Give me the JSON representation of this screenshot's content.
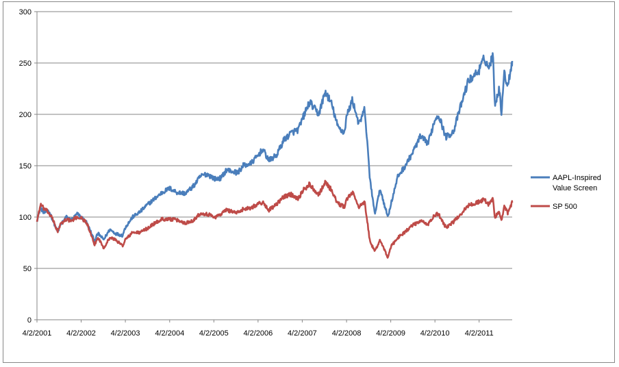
{
  "chart_data": {
    "type": "line",
    "title": "",
    "xlabel": "",
    "ylabel": "",
    "ylim": [
      0,
      300
    ],
    "y_ticks": [
      0,
      50,
      100,
      150,
      200,
      250,
      300
    ],
    "x_tick_labels": [
      "4/2/2001",
      "4/2/2002",
      "4/2/2003",
      "4/2/2004",
      "4/2/2005",
      "4/2/2006",
      "4/2/2007",
      "4/2/2008",
      "4/2/2009",
      "4/2/2010",
      "4/2/2011"
    ],
    "x_range": [
      "2001-04-02",
      "2011-12-31"
    ],
    "grid": "horizontal",
    "legend_position": "right",
    "series": [
      {
        "name": "AAPL-Inspired Value Screen",
        "color": "#4a7ebb",
        "points": [
          [
            "2001-04-02",
            97
          ],
          [
            "2001-05-01",
            109
          ],
          [
            "2001-06-01",
            104
          ],
          [
            "2001-07-01",
            107
          ],
          [
            "2001-08-01",
            100
          ],
          [
            "2001-09-20",
            85
          ],
          [
            "2001-10-15",
            93
          ],
          [
            "2001-12-01",
            100
          ],
          [
            "2002-01-10",
            97
          ],
          [
            "2002-03-01",
            103
          ],
          [
            "2002-04-02",
            100
          ],
          [
            "2002-05-15",
            95
          ],
          [
            "2002-06-15",
            87
          ],
          [
            "2002-07-20",
            77
          ],
          [
            "2002-08-20",
            84
          ],
          [
            "2002-10-05",
            78
          ],
          [
            "2002-11-25",
            88
          ],
          [
            "2003-01-10",
            84
          ],
          [
            "2003-03-10",
            82
          ],
          [
            "2003-04-02",
            90
          ],
          [
            "2003-06-01",
            100
          ],
          [
            "2003-08-01",
            105
          ],
          [
            "2003-10-01",
            112
          ],
          [
            "2003-12-01",
            118
          ],
          [
            "2004-02-01",
            124
          ],
          [
            "2004-04-02",
            128
          ],
          [
            "2004-06-01",
            124
          ],
          [
            "2004-08-10",
            123
          ],
          [
            "2004-10-15",
            130
          ],
          [
            "2004-12-15",
            140
          ],
          [
            "2005-02-01",
            142
          ],
          [
            "2005-04-15",
            137
          ],
          [
            "2005-06-01",
            138
          ],
          [
            "2005-07-15",
            146
          ],
          [
            "2005-10-15",
            143
          ],
          [
            "2005-12-01",
            150
          ],
          [
            "2006-02-01",
            152
          ],
          [
            "2006-04-02",
            160
          ],
          [
            "2006-05-10",
            166
          ],
          [
            "2006-07-01",
            155
          ],
          [
            "2006-09-01",
            160
          ],
          [
            "2006-11-01",
            175
          ],
          [
            "2007-01-01",
            182
          ],
          [
            "2007-03-01",
            185
          ],
          [
            "2007-04-02",
            195
          ],
          [
            "2007-06-01",
            212
          ],
          [
            "2007-08-15",
            200
          ],
          [
            "2007-10-10",
            222
          ],
          [
            "2007-12-01",
            210
          ],
          [
            "2008-01-20",
            188
          ],
          [
            "2008-03-15",
            182
          ],
          [
            "2008-04-02",
            198
          ],
          [
            "2008-05-20",
            214
          ],
          [
            "2008-07-15",
            190
          ],
          [
            "2008-08-30",
            205
          ],
          [
            "2008-10-10",
            140
          ],
          [
            "2008-11-20",
            103
          ],
          [
            "2009-01-05",
            127
          ],
          [
            "2009-03-09",
            100
          ],
          [
            "2009-04-02",
            112
          ],
          [
            "2009-06-01",
            140
          ],
          [
            "2009-08-01",
            150
          ],
          [
            "2009-10-01",
            163
          ],
          [
            "2009-12-01",
            178
          ],
          [
            "2010-02-05",
            172
          ],
          [
            "2010-04-02",
            195
          ],
          [
            "2010-05-01",
            200
          ],
          [
            "2010-07-01",
            178
          ],
          [
            "2010-09-01",
            183
          ],
          [
            "2010-11-01",
            208
          ],
          [
            "2011-01-01",
            232
          ],
          [
            "2011-04-02",
            243
          ],
          [
            "2011-05-15",
            255
          ],
          [
            "2011-06-20",
            245
          ],
          [
            "2011-07-25",
            258
          ],
          [
            "2011-08-10",
            210
          ],
          [
            "2011-09-15",
            225
          ],
          [
            "2011-10-03",
            202
          ],
          [
            "2011-10-25",
            240
          ],
          [
            "2011-11-25",
            228
          ],
          [
            "2011-12-31",
            252
          ]
        ]
      },
      {
        "name": "SP 500",
        "color": "#be4b48",
        "points": [
          [
            "2001-04-02",
            96
          ],
          [
            "2001-05-01",
            112
          ],
          [
            "2001-06-01",
            108
          ],
          [
            "2001-07-01",
            105
          ],
          [
            "2001-08-01",
            100
          ],
          [
            "2001-09-20",
            86
          ],
          [
            "2001-10-15",
            93
          ],
          [
            "2001-12-01",
            98
          ],
          [
            "2002-01-10",
            96
          ],
          [
            "2002-03-01",
            100
          ],
          [
            "2002-04-02",
            99
          ],
          [
            "2002-05-15",
            95
          ],
          [
            "2002-06-15",
            85
          ],
          [
            "2002-07-20",
            73
          ],
          [
            "2002-08-20",
            80
          ],
          [
            "2002-10-05",
            70
          ],
          [
            "2002-11-25",
            80
          ],
          [
            "2003-01-10",
            78
          ],
          [
            "2003-03-10",
            72
          ],
          [
            "2003-04-02",
            78
          ],
          [
            "2003-06-01",
            85
          ],
          [
            "2003-08-01",
            85
          ],
          [
            "2003-10-01",
            89
          ],
          [
            "2003-12-01",
            94
          ],
          [
            "2004-02-01",
            98
          ],
          [
            "2004-04-02",
            98
          ],
          [
            "2004-06-01",
            97
          ],
          [
            "2004-08-10",
            94
          ],
          [
            "2004-10-15",
            97
          ],
          [
            "2004-12-15",
            104
          ],
          [
            "2005-02-01",
            103
          ],
          [
            "2005-04-15",
            100
          ],
          [
            "2005-06-01",
            103
          ],
          [
            "2005-07-15",
            107
          ],
          [
            "2005-10-15",
            104
          ],
          [
            "2005-12-01",
            108
          ],
          [
            "2006-02-01",
            109
          ],
          [
            "2006-04-02",
            113
          ],
          [
            "2006-05-10",
            114
          ],
          [
            "2006-07-01",
            107
          ],
          [
            "2006-09-01",
            112
          ],
          [
            "2006-11-01",
            120
          ],
          [
            "2007-01-01",
            122
          ],
          [
            "2007-03-01",
            118
          ],
          [
            "2007-04-02",
            125
          ],
          [
            "2007-06-01",
            132
          ],
          [
            "2007-08-15",
            122
          ],
          [
            "2007-10-10",
            134
          ],
          [
            "2007-12-01",
            126
          ],
          [
            "2008-01-20",
            113
          ],
          [
            "2008-03-15",
            110
          ],
          [
            "2008-04-02",
            117
          ],
          [
            "2008-05-20",
            124
          ],
          [
            "2008-07-15",
            110
          ],
          [
            "2008-08-30",
            114
          ],
          [
            "2008-10-10",
            78
          ],
          [
            "2008-11-20",
            66
          ],
          [
            "2009-01-05",
            78
          ],
          [
            "2009-03-09",
            60
          ],
          [
            "2009-04-02",
            71
          ],
          [
            "2009-06-01",
            80
          ],
          [
            "2009-08-01",
            86
          ],
          [
            "2009-10-01",
            92
          ],
          [
            "2009-12-01",
            96
          ],
          [
            "2010-02-05",
            93
          ],
          [
            "2010-04-02",
            102
          ],
          [
            "2010-05-01",
            103
          ],
          [
            "2010-07-01",
            90
          ],
          [
            "2010-09-01",
            95
          ],
          [
            "2010-11-01",
            103
          ],
          [
            "2011-01-01",
            111
          ],
          [
            "2011-04-02",
            115
          ],
          [
            "2011-05-15",
            117
          ],
          [
            "2011-06-20",
            112
          ],
          [
            "2011-07-25",
            118
          ],
          [
            "2011-08-10",
            100
          ],
          [
            "2011-09-15",
            105
          ],
          [
            "2011-10-03",
            96
          ],
          [
            "2011-10-25",
            110
          ],
          [
            "2011-11-25",
            104
          ],
          [
            "2011-12-31",
            114
          ]
        ]
      }
    ]
  }
}
